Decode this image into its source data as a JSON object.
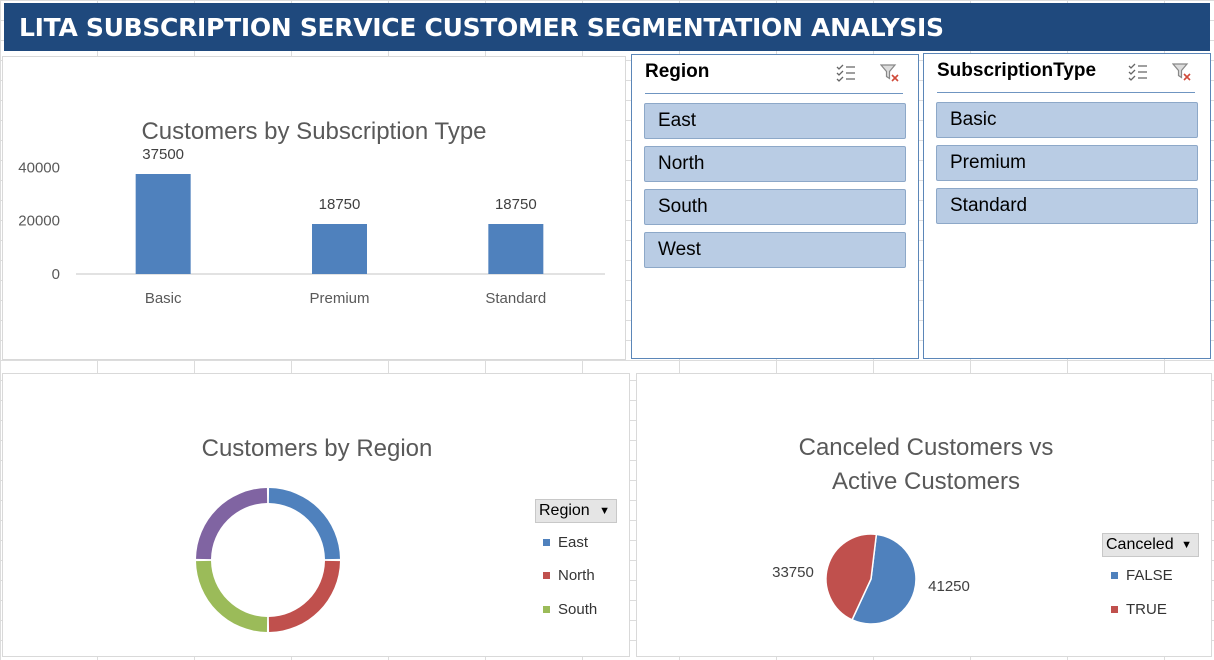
{
  "header": {
    "title": "LITA SUBSCRIPTION SERVICE CUSTOMER SEGMENTATION ANALYSIS"
  },
  "colors": {
    "banner": "#1f497d",
    "blue": "#4f81bd",
    "red": "#c0504d",
    "green": "#9bbb59",
    "purple": "#8064a2",
    "slicer_item": "#b9cce4"
  },
  "slicers": {
    "region": {
      "title": "Region",
      "items": [
        "East",
        "North",
        "South",
        "West"
      ],
      "icons": [
        "multi-select-icon",
        "clear-filter-icon"
      ]
    },
    "subscription": {
      "title": "SubscriptionType",
      "items": [
        "Basic",
        "Premium",
        "Standard"
      ],
      "icons": [
        "multi-select-icon",
        "clear-filter-icon"
      ]
    }
  },
  "chart_data": [
    {
      "type": "bar",
      "title": "Customers by Subscription Type",
      "categories": [
        "Basic",
        "Premium",
        "Standard"
      ],
      "values": [
        37500,
        18750,
        18750
      ],
      "data_labels": [
        "37500",
        "18750",
        "18750"
      ],
      "yticks": [
        "0",
        "20000",
        "40000"
      ],
      "ylim": [
        0,
        45000
      ],
      "grid": false,
      "legend": "none"
    },
    {
      "type": "pie",
      "variant": "doughnut",
      "title": "Customers by Region",
      "legend_field": "Region",
      "legend_entries": [
        "East",
        "North",
        "South"
      ],
      "segments": [
        {
          "name": "East",
          "value": 25,
          "color": "#4f81bd"
        },
        {
          "name": "North",
          "value": 25,
          "color": "#c0504d"
        },
        {
          "name": "South",
          "value": 25,
          "color": "#9bbb59"
        },
        {
          "name": "",
          "value": 25,
          "color": "#8064a2"
        }
      ],
      "legend": "right"
    },
    {
      "type": "pie",
      "title_lines": [
        "Canceled Customers vs",
        "Active Customers"
      ],
      "legend_field": "Canceled",
      "slices": [
        {
          "name": "FALSE",
          "value": 41250,
          "label": "41250",
          "color": "#4f81bd"
        },
        {
          "name": "TRUE",
          "value": 33750,
          "label": "33750",
          "color": "#c0504d"
        }
      ],
      "legend": "right"
    }
  ]
}
